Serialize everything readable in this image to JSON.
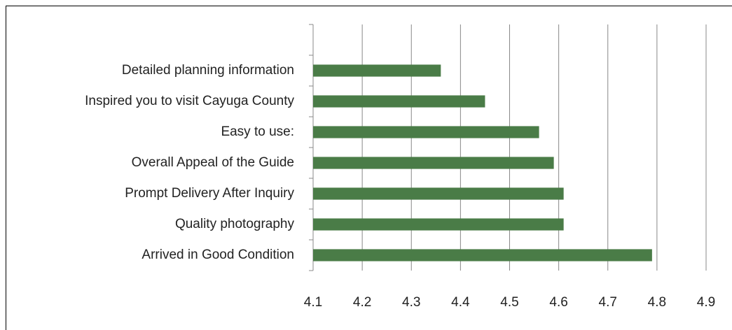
{
  "chart_data": {
    "type": "bar",
    "orientation": "horizontal",
    "categories": [
      null,
      "Detailed planning information",
      "Inspired you to visit Cayuga County",
      "Easy to use:",
      "Overall Appeal of the Guide",
      "Prompt Delivery After Inquiry",
      "Quality photography",
      "Arrived in Good Condition"
    ],
    "values": [
      null,
      4.36,
      4.45,
      4.56,
      4.59,
      4.61,
      4.61,
      4.79
    ],
    "color": "#4a7c47",
    "xlim": [
      4.1,
      4.9
    ],
    "xticks": [
      4.1,
      4.2,
      4.3,
      4.4,
      4.5,
      4.6,
      4.7,
      4.8,
      4.9
    ],
    "grid": true
  }
}
